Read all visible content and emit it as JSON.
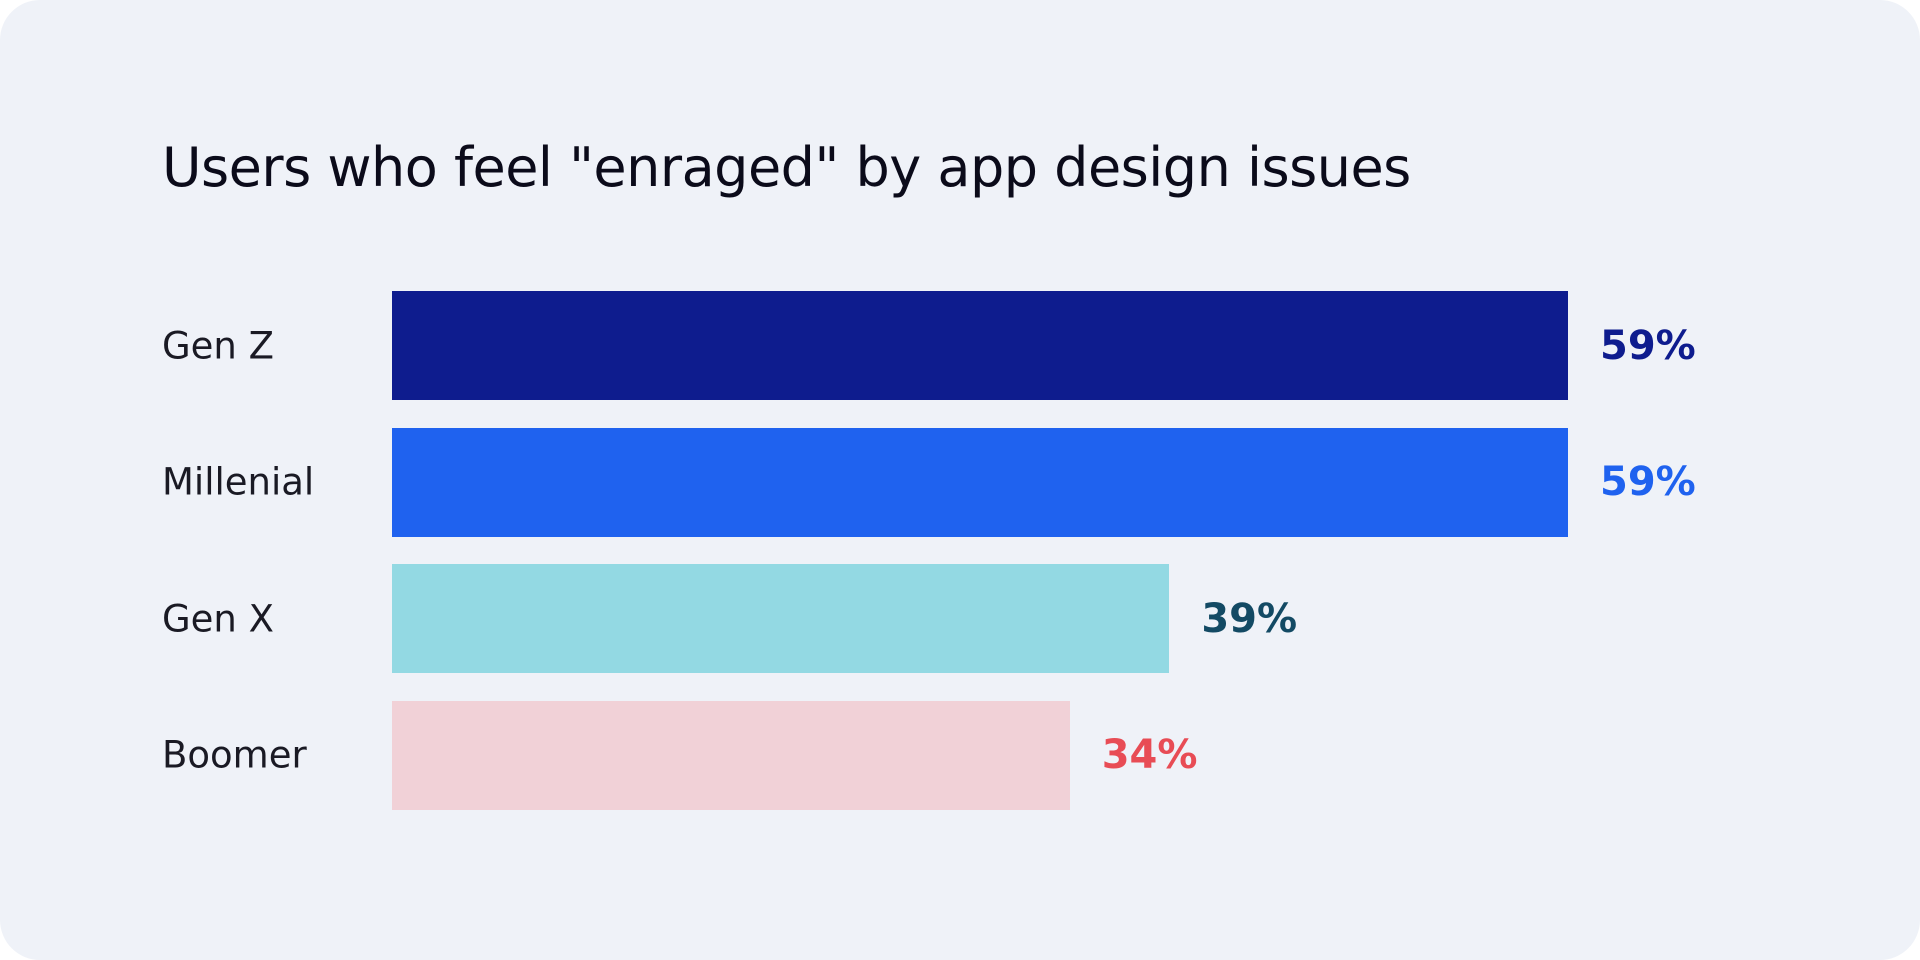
{
  "chart_data": {
    "type": "bar",
    "orientation": "horizontal",
    "title": "Users who feel \"enraged\" by app design issues",
    "categories": [
      "Gen Z",
      "Millenial",
      "Gen X",
      "Boomer"
    ],
    "values": [
      59,
      59,
      39,
      34
    ],
    "value_labels": [
      "59%",
      "59%",
      "39%",
      "34%"
    ],
    "bar_colors": [
      "#0e1c8e",
      "#1f62ef",
      "#93d9e3",
      "#f1d1d7"
    ],
    "label_colors": [
      "#0e1c8e",
      "#1f62ef",
      "#134a64",
      "#e84c55"
    ],
    "xlim": [
      0,
      59
    ],
    "grid": false,
    "axes_visible": false,
    "background": "#eff2f8"
  }
}
